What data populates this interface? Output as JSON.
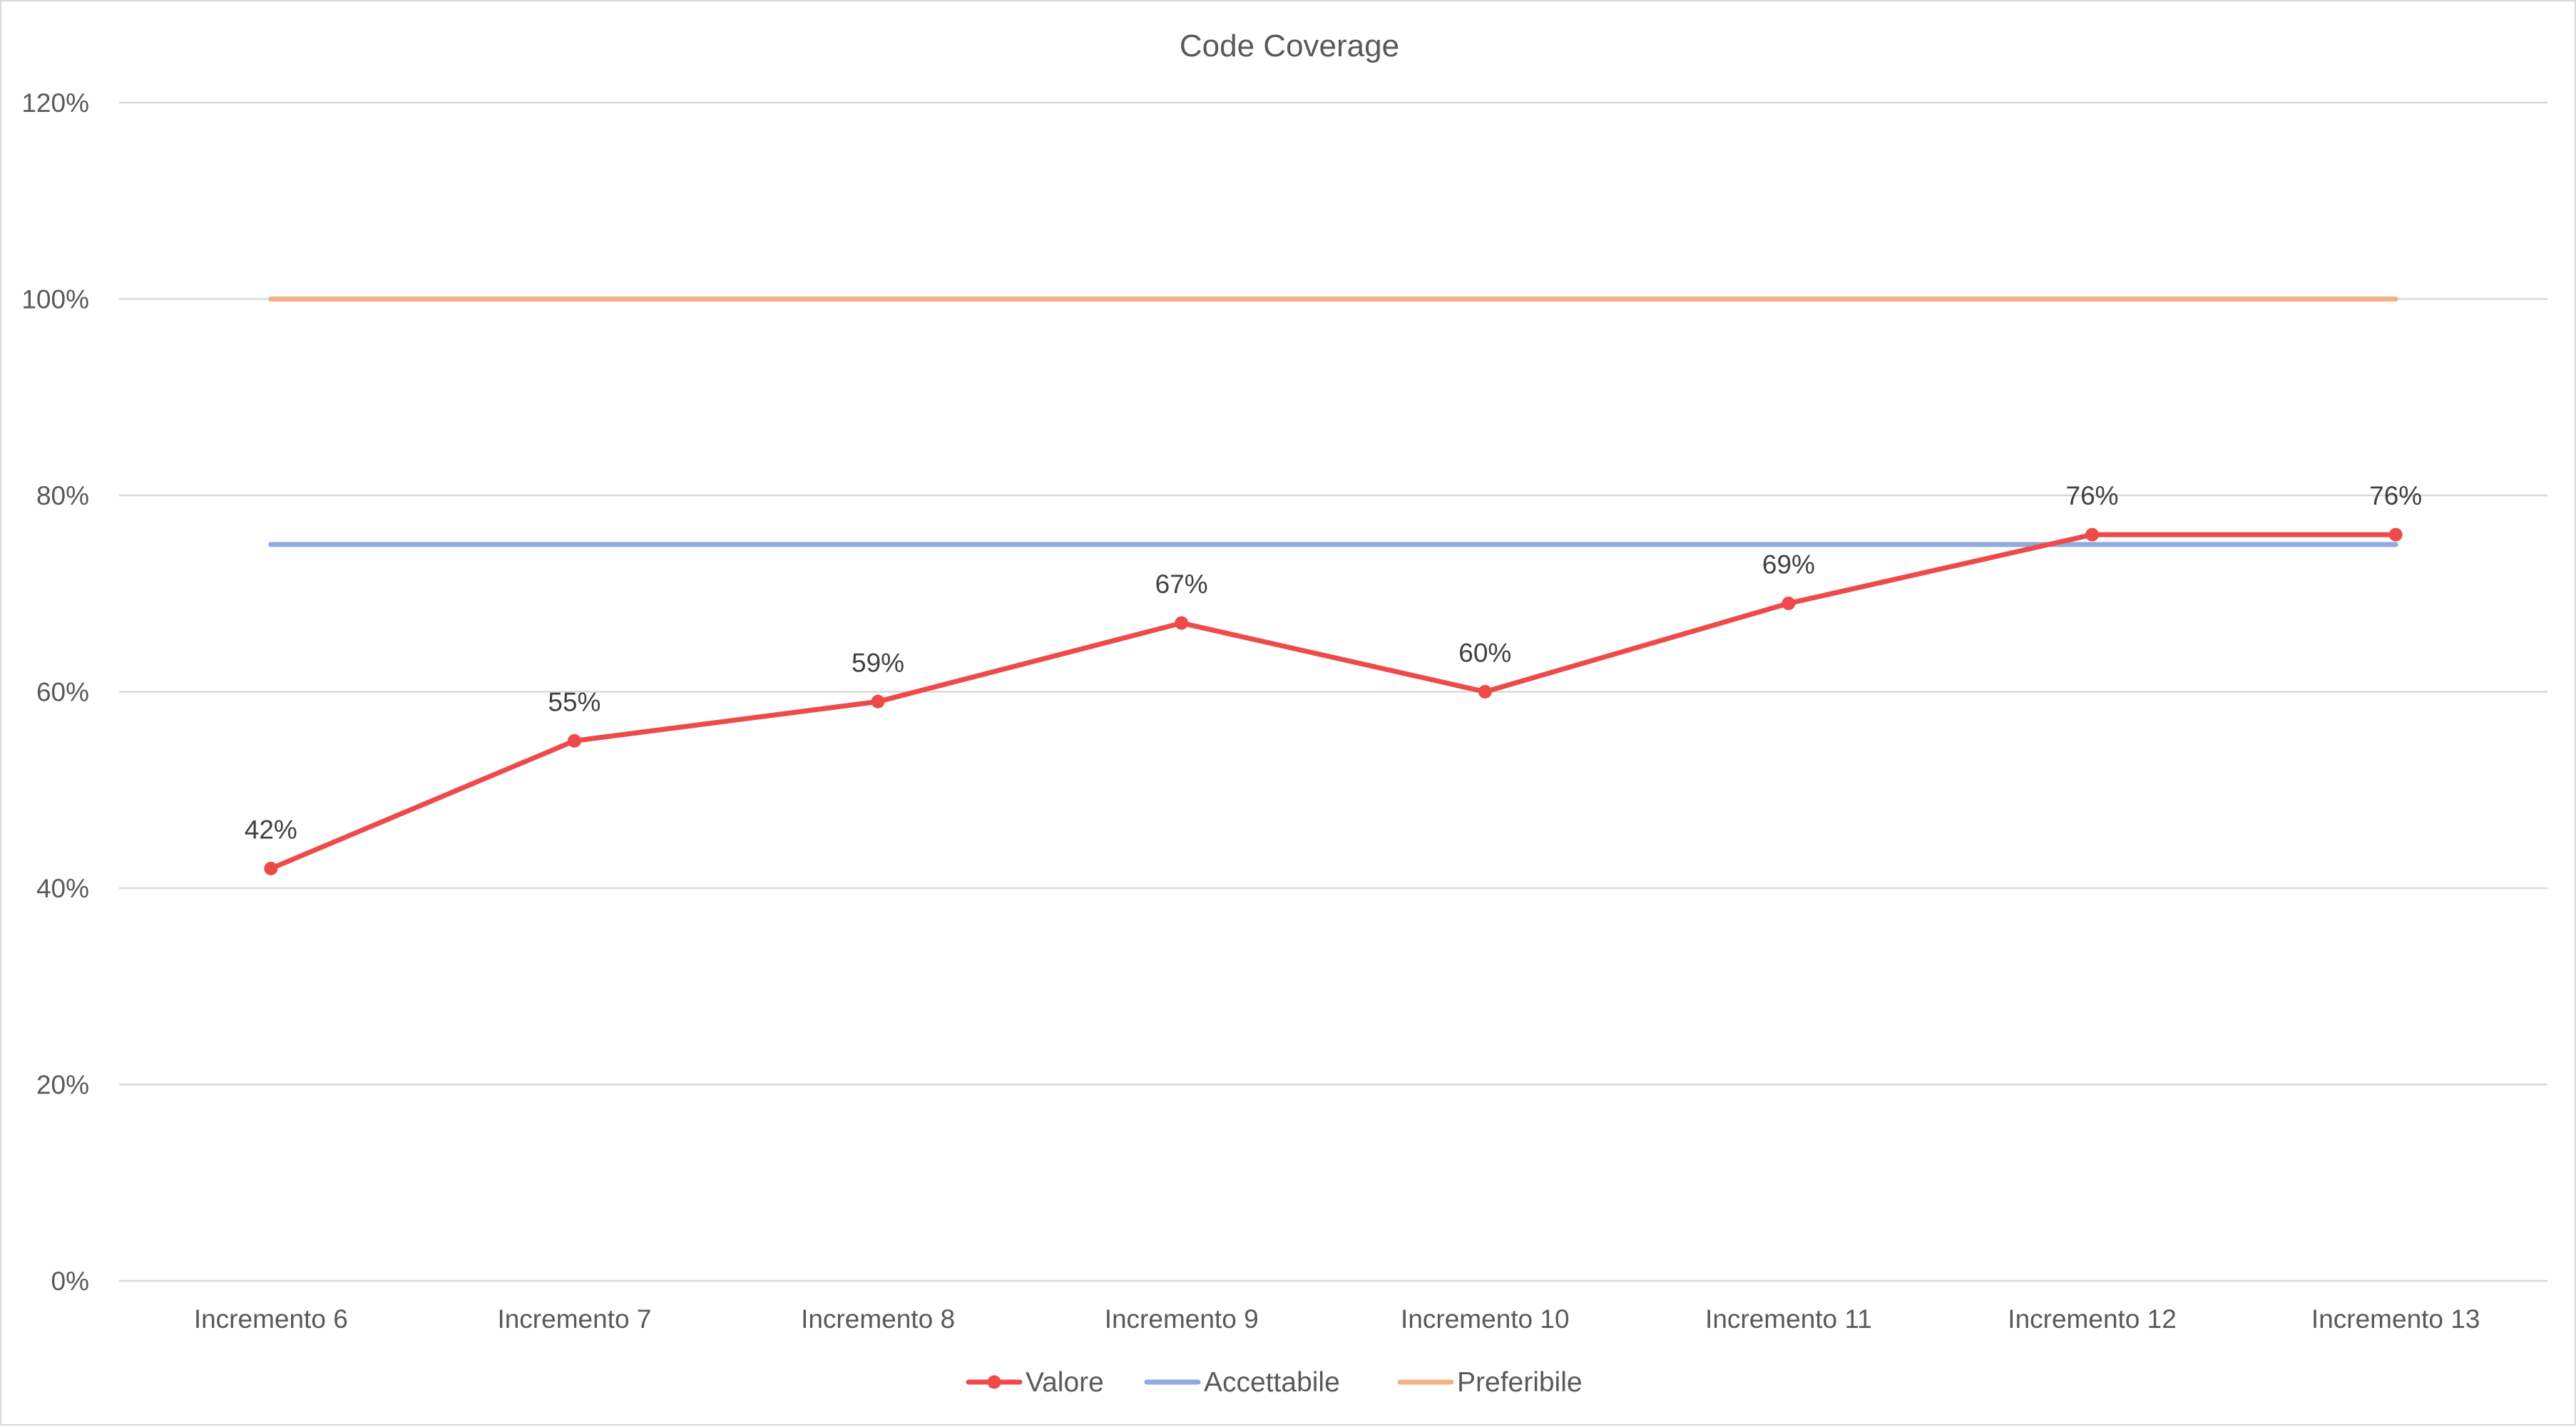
{
  "chart_data": {
    "type": "line",
    "title": "Code Coverage",
    "xlabel": "",
    "ylabel": "",
    "categories": [
      "Incremento 6",
      "Incremento 7",
      "Incremento 8",
      "Incremento 9",
      "Incremento 10",
      "Incremento 11",
      "Incremento 12",
      "Incremento 13"
    ],
    "ylim": [
      0,
      1.2
    ],
    "yticks": [
      0,
      0.2,
      0.4,
      0.6,
      0.8,
      1.0,
      1.2
    ],
    "ytick_labels": [
      "0%",
      "20%",
      "40%",
      "60%",
      "80%",
      "100%",
      "120%"
    ],
    "grid": true,
    "legend_position": "bottom",
    "series": [
      {
        "name": "Valore",
        "color": "#ef4a4a",
        "markers": true,
        "values": [
          0.42,
          0.55,
          0.59,
          0.67,
          0.6,
          0.69,
          0.76,
          0.76
        ],
        "data_labels": [
          "42%",
          "55%",
          "59%",
          "67%",
          "60%",
          "69%",
          "76%",
          "76%"
        ]
      },
      {
        "name": "Accettabile",
        "color": "#8faadc",
        "markers": false,
        "values": [
          0.75,
          0.75,
          0.75,
          0.75,
          0.75,
          0.75,
          0.75,
          0.75
        ]
      },
      {
        "name": "Preferibile",
        "color": "#f4b183",
        "markers": false,
        "values": [
          1.0,
          1.0,
          1.0,
          1.0,
          1.0,
          1.0,
          1.0,
          1.0
        ]
      }
    ]
  }
}
